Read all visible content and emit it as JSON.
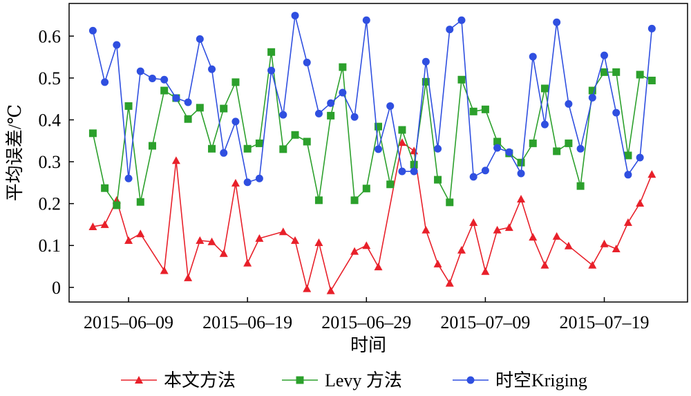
{
  "chart_data": {
    "type": "line",
    "xlabel": "时间",
    "ylabel": "平均误差/℃",
    "xlim": [
      "2015-06-04",
      "2015-07-26"
    ],
    "xticks": [
      {
        "value": "2015-06-09",
        "label": "2015–06–09"
      },
      {
        "value": "2015-06-19",
        "label": "2015–06–19"
      },
      {
        "value": "2015-06-29",
        "label": "2015–06–29"
      },
      {
        "value": "2015-07-09",
        "label": "2015–07–09"
      },
      {
        "value": "2015-07-19",
        "label": "2015–07–19"
      }
    ],
    "ylim": [
      -0.035,
      0.678
    ],
    "yticks": [
      0,
      0.1,
      0.2,
      0.3,
      0.4,
      0.5,
      0.6
    ],
    "series": [
      {
        "name": "本文方法",
        "color": "#e8202a",
        "marker": "triangle",
        "x": [
          "2015-06-06",
          "2015-06-07",
          "2015-06-08",
          "2015-06-09",
          "2015-06-10",
          "2015-06-12",
          "2015-06-13",
          "2015-06-14",
          "2015-06-15",
          "2015-06-16",
          "2015-06-17",
          "2015-06-18",
          "2015-06-19",
          "2015-06-20",
          "2015-06-22",
          "2015-06-23",
          "2015-06-24",
          "2015-06-25",
          "2015-06-26",
          "2015-06-28",
          "2015-06-29",
          "2015-06-30",
          "2015-07-02",
          "2015-07-03",
          "2015-07-04",
          "2015-07-05",
          "2015-07-06",
          "2015-07-07",
          "2015-07-08",
          "2015-07-09",
          "2015-07-10",
          "2015-07-11",
          "2015-07-12",
          "2015-07-13",
          "2015-07-14",
          "2015-07-15",
          "2015-07-16",
          "2015-07-18",
          "2015-07-19",
          "2015-07-20",
          "2015-07-21",
          "2015-07-22",
          "2015-07-23"
        ],
        "values": [
          0.145,
          0.15,
          0.208,
          0.112,
          0.128,
          0.04,
          0.303,
          0.023,
          0.112,
          0.109,
          0.081,
          0.249,
          0.058,
          0.117,
          0.133,
          0.112,
          -0.003,
          0.107,
          -0.008,
          0.086,
          0.1,
          0.049,
          0.346,
          0.326,
          0.137,
          0.056,
          0.01,
          0.089,
          0.155,
          0.038,
          0.137,
          0.143,
          0.211,
          0.12,
          0.053,
          0.122,
          0.099,
          0.053,
          0.104,
          0.092,
          0.155,
          0.201,
          0.27
        ]
      },
      {
        "name": "Levy 方法",
        "color": "#2ca02c",
        "marker": "square",
        "x": [
          "2015-06-06",
          "2015-06-07",
          "2015-06-08",
          "2015-06-09",
          "2015-06-10",
          "2015-06-11",
          "2015-06-12",
          "2015-06-13",
          "2015-06-14",
          "2015-06-15",
          "2015-06-16",
          "2015-06-17",
          "2015-06-18",
          "2015-06-19",
          "2015-06-20",
          "2015-06-21",
          "2015-06-22",
          "2015-06-23",
          "2015-06-24",
          "2015-06-25",
          "2015-06-26",
          "2015-06-27",
          "2015-06-28",
          "2015-06-29",
          "2015-06-30",
          "2015-07-01",
          "2015-07-02",
          "2015-07-03",
          "2015-07-04",
          "2015-07-05",
          "2015-07-06",
          "2015-07-07",
          "2015-07-08",
          "2015-07-09",
          "2015-07-10",
          "2015-07-11",
          "2015-07-12",
          "2015-07-13",
          "2015-07-14",
          "2015-07-15",
          "2015-07-16",
          "2015-07-17",
          "2015-07-18",
          "2015-07-19",
          "2015-07-20",
          "2015-07-21",
          "2015-07-22",
          "2015-07-23"
        ],
        "values": [
          0.368,
          0.237,
          0.196,
          0.433,
          0.204,
          0.338,
          0.47,
          0.452,
          0.402,
          0.429,
          0.331,
          0.427,
          0.49,
          0.331,
          0.344,
          0.562,
          0.33,
          0.364,
          0.348,
          0.208,
          0.41,
          0.526,
          0.208,
          0.236,
          0.384,
          0.246,
          0.376,
          0.293,
          0.491,
          0.257,
          0.203,
          0.496,
          0.42,
          0.425,
          0.348,
          0.32,
          0.298,
          0.344,
          0.475,
          0.325,
          0.344,
          0.242,
          0.47,
          0.514,
          0.514,
          0.315,
          0.508,
          0.494
        ]
      },
      {
        "name": "时空Kriging",
        "color": "#2f4fe0",
        "marker": "circle",
        "x": [
          "2015-06-06",
          "2015-06-07",
          "2015-06-08",
          "2015-06-09",
          "2015-06-10",
          "2015-06-11",
          "2015-06-12",
          "2015-06-13",
          "2015-06-14",
          "2015-06-15",
          "2015-06-16",
          "2015-06-17",
          "2015-06-18",
          "2015-06-19",
          "2015-06-20",
          "2015-06-21",
          "2015-06-22",
          "2015-06-23",
          "2015-06-24",
          "2015-06-25",
          "2015-06-26",
          "2015-06-27",
          "2015-06-28",
          "2015-06-29",
          "2015-06-30",
          "2015-07-01",
          "2015-07-02",
          "2015-07-03",
          "2015-07-04",
          "2015-07-05",
          "2015-07-06",
          "2015-07-07",
          "2015-07-08",
          "2015-07-09",
          "2015-07-10",
          "2015-07-11",
          "2015-07-12",
          "2015-07-13",
          "2015-07-14",
          "2015-07-15",
          "2015-07-16",
          "2015-07-17",
          "2015-07-18",
          "2015-07-19",
          "2015-07-20",
          "2015-07-21",
          "2015-07-22",
          "2015-07-23"
        ],
        "values": [
          0.613,
          0.49,
          0.579,
          0.26,
          0.516,
          0.499,
          0.496,
          0.452,
          0.442,
          0.593,
          0.521,
          0.321,
          0.396,
          0.251,
          0.26,
          0.518,
          0.412,
          0.649,
          0.537,
          0.415,
          0.44,
          0.465,
          0.407,
          0.638,
          0.33,
          0.433,
          0.277,
          0.277,
          0.539,
          0.331,
          0.616,
          0.638,
          0.264,
          0.279,
          0.333,
          0.323,
          0.272,
          0.551,
          0.389,
          0.633,
          0.438,
          0.331,
          0.453,
          0.554,
          0.417,
          0.269,
          0.31,
          0.618
        ]
      }
    ]
  }
}
